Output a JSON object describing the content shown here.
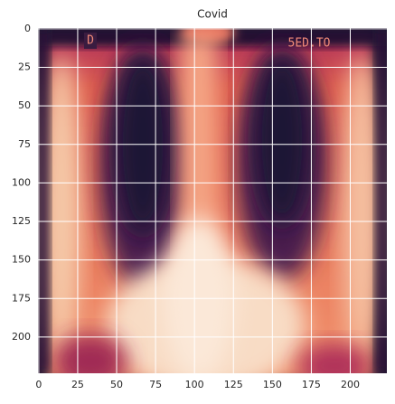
{
  "chart_data": {
    "type": "image",
    "title": "Covid",
    "xlim": [
      -0.5,
      223.5
    ],
    "ylim": [
      223.5,
      -0.5
    ],
    "xticks": [
      0,
      25,
      50,
      75,
      100,
      125,
      150,
      175,
      200
    ],
    "yticks": [
      0,
      25,
      50,
      75,
      100,
      125,
      150,
      175,
      200
    ],
    "grid": true,
    "grid_color": "#ffffff",
    "annotations": [
      "D",
      "5ED.TO"
    ]
  }
}
